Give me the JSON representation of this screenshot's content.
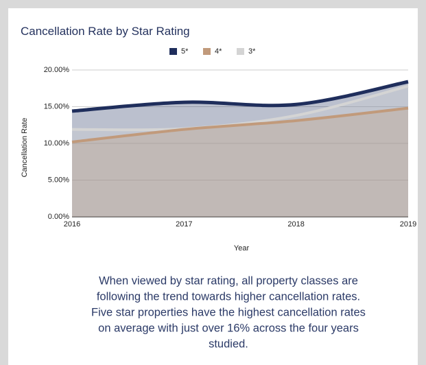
{
  "chart_data": {
    "type": "area",
    "title": "Cancellation Rate by Star Rating",
    "x_label": "Year",
    "y_label": "Cancellation Rate",
    "categories": [
      "2016",
      "2017",
      "2018",
      "2019"
    ],
    "series": [
      {
        "name": "5*",
        "color": "#1f2e5c",
        "values": [
          14.4,
          15.6,
          15.3,
          18.4
        ]
      },
      {
        "name": "4*",
        "color": "#c19a7b",
        "values": [
          10.2,
          11.9,
          13.1,
          14.8
        ]
      },
      {
        "name": "3*",
        "color": "#d4d4d4",
        "values": [
          11.9,
          12.0,
          13.8,
          17.8
        ]
      }
    ],
    "ylim": [
      0,
      20
    ],
    "yticks": [
      {
        "value": 0,
        "label": "0.00%"
      },
      {
        "value": 5,
        "label": "5.00%"
      },
      {
        "value": 10,
        "label": "10.00%"
      },
      {
        "value": 15,
        "label": "15.00%"
      },
      {
        "value": 20,
        "label": "20.00%"
      }
    ],
    "grid": true,
    "legend": "top"
  },
  "caption": {
    "lines": [
      "When viewed by star rating, all property classes are",
      "following the trend towards higher cancellation rates.",
      "Five star properties have the highest cancellation rates",
      "on average with just over 16% across the four years",
      "studied."
    ]
  }
}
